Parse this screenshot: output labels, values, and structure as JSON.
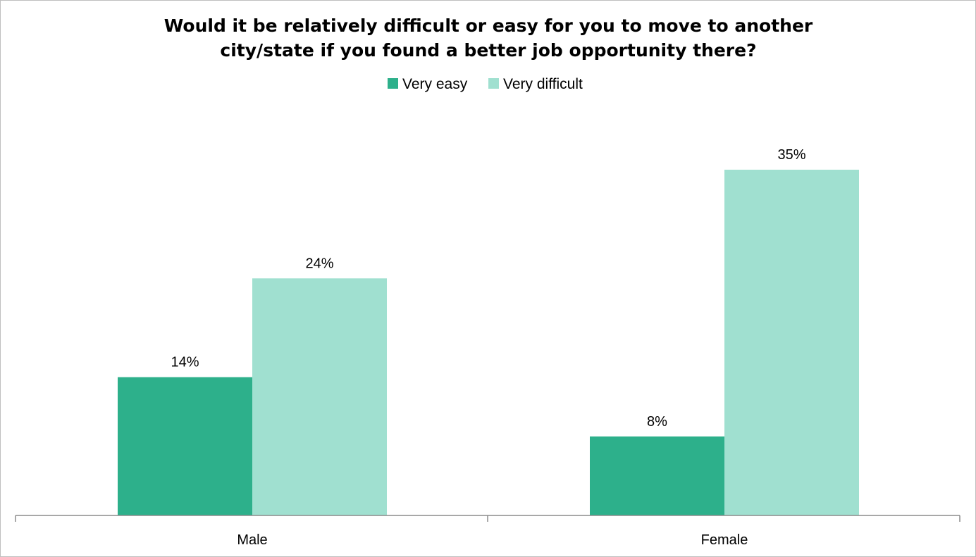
{
  "chart_data": {
    "type": "bar",
    "title_lines": [
      "Would it be relatively difficult or easy for you to move to another",
      "city/state if you found a better job opportunity there?"
    ],
    "categories": [
      "Male",
      "Female"
    ],
    "series": [
      {
        "name": "Very easy",
        "values": [
          14,
          8
        ],
        "labels": [
          "14%",
          "8%"
        ],
        "color": "#2db08b"
      },
      {
        "name": "Very difficult",
        "values": [
          24,
          35
        ],
        "labels": [
          "24%",
          "35%"
        ],
        "color": "#a0e0d0"
      }
    ],
    "unit": "%",
    "ylim": [
      0,
      40
    ],
    "grid": false,
    "legend_position": "top-center",
    "xlabel": "",
    "ylabel": ""
  }
}
